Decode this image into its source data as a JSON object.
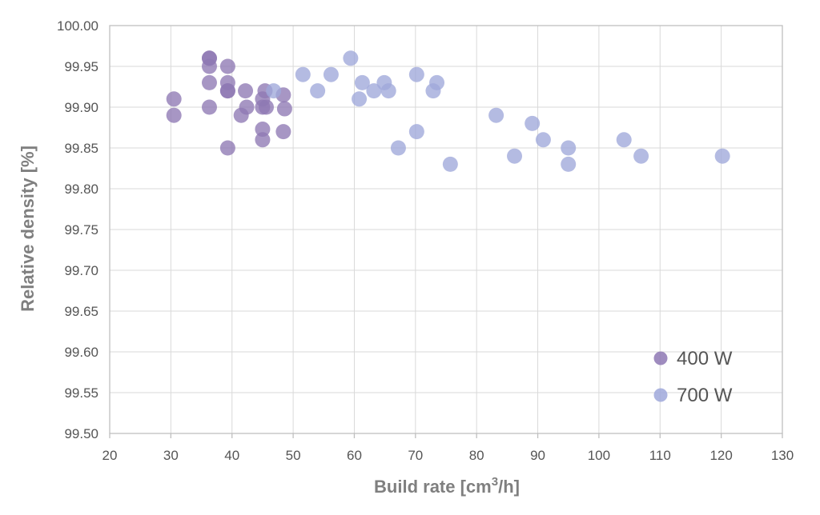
{
  "chart_data": {
    "type": "scatter",
    "title": "",
    "xlabel": "Build rate [cm",
    "xlabel_sup": "3",
    "xlabel_suffix": "/h]",
    "ylabel": "Relative density [%]",
    "xlim": [
      20,
      130
    ],
    "ylim": [
      99.5,
      100.0
    ],
    "x_ticks": [
      "20",
      "30",
      "40",
      "50",
      "60",
      "70",
      "80",
      "90",
      "100",
      "110",
      "120",
      "130"
    ],
    "y_ticks": [
      "99.50",
      "99.55",
      "99.60",
      "99.65",
      "99.70",
      "99.75",
      "99.80",
      "99.85",
      "99.90",
      "99.95",
      "100.00"
    ],
    "grid": true,
    "legend_position": "bottom-right",
    "series": [
      {
        "name": "400 W",
        "color": "#8e78b4",
        "points": [
          [
            30.5,
            99.91
          ],
          [
            30.5,
            99.89
          ],
          [
            36.3,
            99.96
          ],
          [
            36.3,
            99.96
          ],
          [
            36.3,
            99.95
          ],
          [
            36.3,
            99.93
          ],
          [
            36.3,
            99.9
          ],
          [
            39.3,
            99.95
          ],
          [
            39.3,
            99.93
          ],
          [
            39.3,
            99.92
          ],
          [
            39.3,
            99.92
          ],
          [
            39.3,
            99.85
          ],
          [
            41.5,
            99.89
          ],
          [
            42.2,
            99.92
          ],
          [
            42.4,
            99.9
          ],
          [
            45.0,
            99.91
          ],
          [
            45.0,
            99.9
          ],
          [
            45.0,
            99.873
          ],
          [
            45.0,
            99.86
          ],
          [
            45.4,
            99.92
          ],
          [
            45.6,
            99.9
          ],
          [
            48.4,
            99.915
          ],
          [
            48.6,
            99.898
          ],
          [
            48.4,
            99.87
          ]
        ]
      },
      {
        "name": "700 W",
        "color": "#9fa8da",
        "points": [
          [
            46.8,
            99.92
          ],
          [
            51.6,
            99.94
          ],
          [
            54.0,
            99.92
          ],
          [
            56.2,
            99.94
          ],
          [
            59.4,
            99.96
          ],
          [
            60.8,
            99.91
          ],
          [
            61.3,
            99.93
          ],
          [
            63.2,
            99.92
          ],
          [
            64.9,
            99.93
          ],
          [
            65.6,
            99.92
          ],
          [
            67.2,
            99.85
          ],
          [
            70.2,
            99.94
          ],
          [
            70.2,
            99.87
          ],
          [
            72.9,
            99.92
          ],
          [
            73.5,
            99.93
          ],
          [
            75.7,
            99.83
          ],
          [
            83.2,
            99.89
          ],
          [
            86.2,
            99.84
          ],
          [
            89.1,
            99.88
          ],
          [
            90.9,
            99.86
          ],
          [
            95.0,
            99.85
          ],
          [
            95.0,
            99.83
          ],
          [
            104.1,
            99.86
          ],
          [
            106.9,
            99.84
          ],
          [
            120.2,
            99.84
          ]
        ]
      }
    ]
  }
}
